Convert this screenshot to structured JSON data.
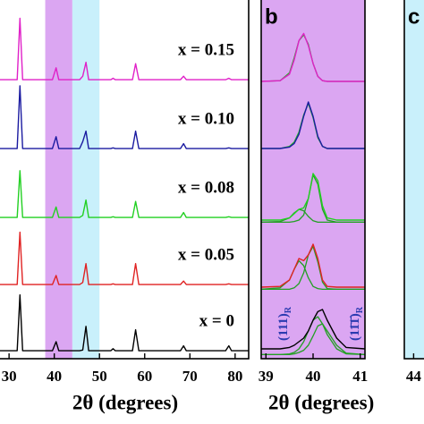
{
  "chart_data": [
    {
      "type": "line",
      "xlabel": "2θ (degrees)",
      "xlim": [
        27.6,
        83
      ],
      "xticks": [
        30,
        40,
        50,
        60,
        70,
        80
      ],
      "ylim": [
        0,
        1
      ],
      "bands": [
        {
          "xlim": [
            38,
            44
          ],
          "color": "#dba6f2"
        },
        {
          "xlim": [
            44,
            50
          ],
          "color": "#c9f0fb"
        }
      ],
      "x": [
        27.6,
        31.8,
        32.4,
        33.0,
        39.6,
        40.4,
        41.0,
        45.6,
        46.3,
        47.0,
        47.6,
        52.5,
        53.0,
        53.5,
        57.3,
        58.0,
        58.7,
        67.9,
        68.6,
        69.2,
        77.9,
        78.6,
        79.2,
        83
      ],
      "series": [
        {
          "name": "x = 0.15",
          "color": "#e020c8",
          "values": [
            0.05,
            0.05,
            0.93,
            0.05,
            0.05,
            0.22,
            0.05,
            0.05,
            0.1,
            0.3,
            0.05,
            0.05,
            0.07,
            0.05,
            0.05,
            0.28,
            0.05,
            0.05,
            0.1,
            0.05,
            0.05,
            0.07,
            0.05,
            0.05
          ]
        },
        {
          "name": "x = 0.10",
          "color": "#1a1aa0",
          "values": [
            0.05,
            0.05,
            0.95,
            0.05,
            0.05,
            0.22,
            0.05,
            0.05,
            0.15,
            0.3,
            0.05,
            0.05,
            0.06,
            0.05,
            0.05,
            0.3,
            0.05,
            0.05,
            0.12,
            0.05,
            0.05,
            0.06,
            0.05,
            0.05
          ]
        },
        {
          "name": "x = 0.08",
          "color": "#22d022",
          "values": [
            0.05,
            0.05,
            0.72,
            0.05,
            0.05,
            0.2,
            0.05,
            0.05,
            0.08,
            0.3,
            0.05,
            0.05,
            0.06,
            0.05,
            0.05,
            0.28,
            0.05,
            0.05,
            0.12,
            0.05,
            0.05,
            0.06,
            0.05,
            0.05
          ]
        },
        {
          "name": "x = 0.05",
          "color": "#e02222",
          "values": [
            0.05,
            0.05,
            0.8,
            0.05,
            0.05,
            0.18,
            0.05,
            0.05,
            0.08,
            0.35,
            0.05,
            0.05,
            0.06,
            0.05,
            0.05,
            0.35,
            0.05,
            0.05,
            0.1,
            0.05,
            0.05,
            0.06,
            0.05,
            0.05
          ]
        },
        {
          "name": "x = 0",
          "color": "#000000",
          "values": [
            0.05,
            0.05,
            0.85,
            0.05,
            0.05,
            0.18,
            0.05,
            0.05,
            0.06,
            0.4,
            0.05,
            0.05,
            0.08,
            0.05,
            0.05,
            0.35,
            0.05,
            0.05,
            0.12,
            0.05,
            0.05,
            0.12,
            0.05,
            0.05
          ]
        }
      ]
    },
    {
      "type": "line",
      "label": "b",
      "xlabel": "2θ (degrees)",
      "xlim": [
        38.9,
        41.1
      ],
      "xticks": [
        39,
        40,
        41
      ],
      "ylim": [
        0,
        1
      ],
      "background": "#dba6f2",
      "x": [
        38.9,
        39.3,
        39.5,
        39.6,
        39.7,
        39.8,
        39.9,
        40.0,
        40.1,
        40.2,
        40.3,
        40.5,
        40.7,
        41.1
      ],
      "series": [
        {
          "color": "#e020c8",
          "values": [
            0.05,
            0.06,
            0.15,
            0.35,
            0.62,
            0.72,
            0.55,
            0.3,
            0.12,
            0.06,
            0.05,
            0.05,
            0.05,
            0.05
          ],
          "fits": [
            {
              "color": "#22b822",
              "values": [
                0.05,
                0.06,
                0.17,
                0.38,
                0.62,
                0.7,
                0.57,
                0.3,
                0.12,
                0.06,
                0.05,
                0.05,
                0.05,
                0.05
              ]
            }
          ]
        },
        {
          "color": "#1a1aa0",
          "values": [
            0.05,
            0.05,
            0.07,
            0.12,
            0.25,
            0.5,
            0.7,
            0.5,
            0.22,
            0.08,
            0.05,
            0.05,
            0.05,
            0.05
          ],
          "fits": [
            {
              "color": "#22b822",
              "values": [
                0.05,
                0.05,
                0.08,
                0.14,
                0.28,
                0.52,
                0.68,
                0.48,
                0.2,
                0.08,
                0.05,
                0.05,
                0.05,
                0.05
              ]
            }
          ]
        },
        {
          "color": "#22d022",
          "values": [
            0.05,
            0.05,
            0.08,
            0.14,
            0.2,
            0.22,
            0.35,
            0.7,
            0.6,
            0.25,
            0.08,
            0.05,
            0.05,
            0.05
          ],
          "fits": [
            {
              "color": "#22a022",
              "values": [
                0.02,
                0.03,
                0.08,
                0.15,
                0.2,
                0.18,
                0.1,
                0.04,
                0.02,
                0.02,
                0.02,
                0.02,
                0.02,
                0.02
              ]
            },
            {
              "color": "#22a022",
              "values": [
                0.02,
                0.02,
                0.02,
                0.03,
                0.05,
                0.12,
                0.35,
                0.68,
                0.55,
                0.2,
                0.05,
                0.02,
                0.02,
                0.02
              ]
            }
          ]
        },
        {
          "color": "#e02222",
          "values": [
            0.05,
            0.06,
            0.15,
            0.3,
            0.45,
            0.42,
            0.5,
            0.65,
            0.45,
            0.15,
            0.06,
            0.05,
            0.05,
            0.05
          ],
          "fits": [
            {
              "color": "#22a022",
              "values": [
                0.02,
                0.04,
                0.15,
                0.3,
                0.42,
                0.35,
                0.18,
                0.06,
                0.03,
                0.02,
                0.02,
                0.02,
                0.02,
                0.02
              ]
            },
            {
              "color": "#22a022",
              "values": [
                0.02,
                0.02,
                0.02,
                0.04,
                0.1,
                0.25,
                0.5,
                0.62,
                0.4,
                0.12,
                0.03,
                0.02,
                0.02,
                0.02
              ]
            }
          ]
        },
        {
          "color": "#000000",
          "values": [
            0.1,
            0.1,
            0.12,
            0.15,
            0.2,
            0.25,
            0.35,
            0.5,
            0.62,
            0.65,
            0.5,
            0.25,
            0.12,
            0.1
          ],
          "fits": [
            {
              "color": "#22a022",
              "values": [
                0.02,
                0.02,
                0.03,
                0.05,
                0.1,
                0.2,
                0.35,
                0.5,
                0.55,
                0.45,
                0.3,
                0.1,
                0.03,
                0.02
              ]
            },
            {
              "color": "#22a022",
              "values": [
                0.02,
                0.02,
                0.02,
                0.03,
                0.05,
                0.08,
                0.15,
                0.28,
                0.42,
                0.45,
                0.35,
                0.15,
                0.04,
                0.02
              ]
            }
          ]
        }
      ],
      "annotations": [
        {
          "text": "(111)",
          "sub": "R",
          "color": "#2a3ab0"
        },
        {
          "text": "(11̄1̄)",
          "sub": "R",
          "color": "#2a3ab0"
        }
      ]
    },
    {
      "type": "line",
      "label": "c",
      "xlim": [
        43.8,
        44.3
      ],
      "xticks": [
        44
      ],
      "background": "#c9f0fb",
      "series": []
    }
  ]
}
